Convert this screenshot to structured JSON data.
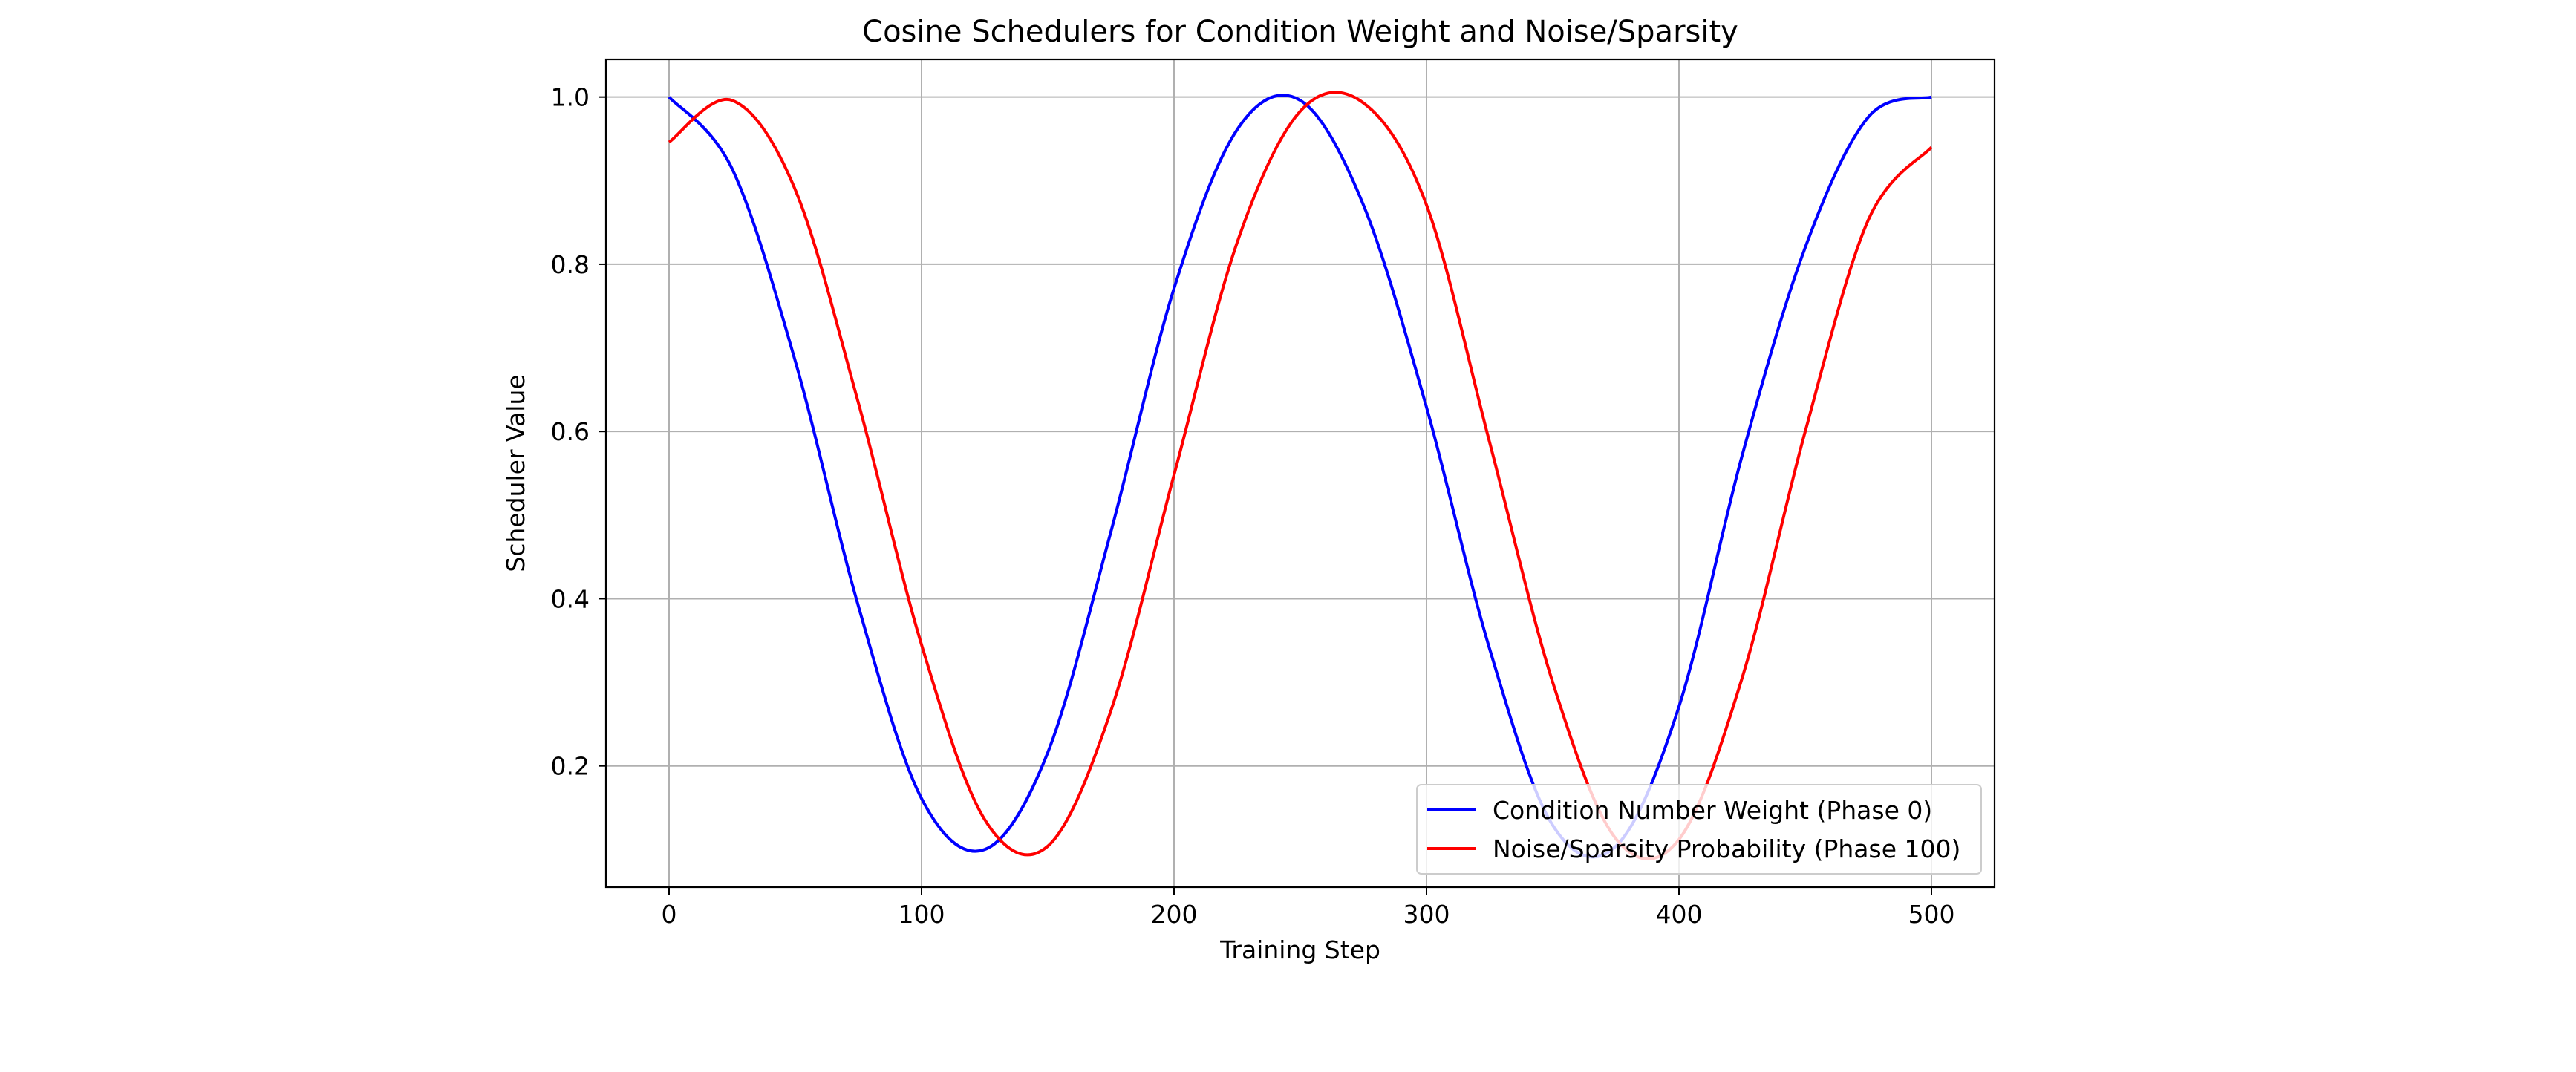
{
  "chart_data": {
    "type": "line",
    "title": "Cosine Schedulers for Condition Weight and Noise/Sparsity",
    "xlabel": "Training Step",
    "ylabel": "Scheduler Value",
    "xlim": [
      -25,
      525
    ],
    "ylim": [
      0.055,
      1.045
    ],
    "xticks": [
      0,
      100,
      200,
      300,
      400,
      500
    ],
    "yticks": [
      0.2,
      0.4,
      0.6,
      0.8,
      1.0
    ],
    "xtick_labels": [
      "0",
      "100",
      "200",
      "300",
      "400",
      "500"
    ],
    "ytick_labels": [
      "0.2",
      "0.4",
      "0.6",
      "0.8",
      "1.0"
    ],
    "grid": true,
    "legend_position": "lower right",
    "series": [
      {
        "name": "Condition Number Weight (Phase 0)",
        "color": "#0000ff",
        "x": [
          0,
          25,
          50,
          75,
          100,
          125,
          150,
          175,
          200,
          225,
          250,
          275,
          300,
          325,
          350,
          375,
          400,
          425,
          450,
          475,
          500
        ],
        "y": [
          1.0,
          0.914,
          0.684,
          0.391,
          0.161,
          0.1,
          0.216,
          0.48,
          0.771,
          0.961,
          0.996,
          0.871,
          0.629,
          0.34,
          0.129,
          0.104,
          0.271,
          0.571,
          0.82,
          0.976,
          1.0
        ]
      },
      {
        "name": "Noise/Sparsity Probability (Phase 100)",
        "color": "#ff0000",
        "x": [
          0,
          25,
          50,
          75,
          100,
          125,
          150,
          175,
          200,
          225,
          250,
          275,
          300,
          325,
          350,
          375,
          400,
          425,
          450,
          475,
          500
        ],
        "y": [
          0.946,
          0.996,
          0.889,
          0.634,
          0.345,
          0.136,
          0.104,
          0.266,
          0.548,
          0.826,
          0.983,
          0.993,
          0.871,
          0.587,
          0.3,
          0.113,
          0.112,
          0.305,
          0.6,
          0.853,
          0.94
        ]
      }
    ]
  }
}
